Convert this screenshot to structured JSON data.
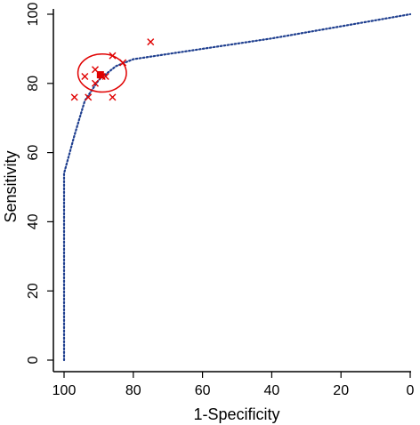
{
  "chart_data": {
    "type": "scatter",
    "title": "",
    "xlabel": "1-Specificity",
    "ylabel": "Sensitivity",
    "xlim": [
      100,
      0
    ],
    "ylim": [
      0,
      100
    ],
    "x_ticks": [
      100,
      80,
      60,
      40,
      20,
      0
    ],
    "y_ticks": [
      0,
      20,
      40,
      60,
      80,
      100
    ],
    "grid": false,
    "colors": {
      "points": "#e00000",
      "curve": "#1f3f8f",
      "axis": "#000000"
    },
    "series": [
      {
        "kind": "study_points",
        "marker": "x",
        "points": [
          {
            "x": 97,
            "y": 76
          },
          {
            "x": 93,
            "y": 76
          },
          {
            "x": 94,
            "y": 82
          },
          {
            "x": 91,
            "y": 84
          },
          {
            "x": 91,
            "y": 80
          },
          {
            "x": 89,
            "y": 82
          },
          {
            "x": 88,
            "y": 82
          },
          {
            "x": 86,
            "y": 76
          },
          {
            "x": 86,
            "y": 88
          },
          {
            "x": 83,
            "y": 86
          },
          {
            "x": 75,
            "y": 92
          }
        ]
      },
      {
        "kind": "summary_point",
        "marker": "filled-square",
        "points": [
          {
            "x": 89.5,
            "y": 82.5
          }
        ]
      },
      {
        "kind": "confidence_region",
        "center": {
          "x": 89,
          "y": 83
        },
        "radius_x": 7,
        "radius_y": 5.5
      },
      {
        "kind": "sroc_curve",
        "style": "dotted",
        "points": [
          {
            "x": 100,
            "y": 0
          },
          {
            "x": 100,
            "y": 54
          },
          {
            "x": 97,
            "y": 65
          },
          {
            "x": 94,
            "y": 75
          },
          {
            "x": 90,
            "y": 81
          },
          {
            "x": 85,
            "y": 85
          },
          {
            "x": 80,
            "y": 87
          },
          {
            "x": 60,
            "y": 90
          },
          {
            "x": 40,
            "y": 93
          },
          {
            "x": 20,
            "y": 96.5
          },
          {
            "x": 0,
            "y": 100
          }
        ]
      }
    ]
  }
}
